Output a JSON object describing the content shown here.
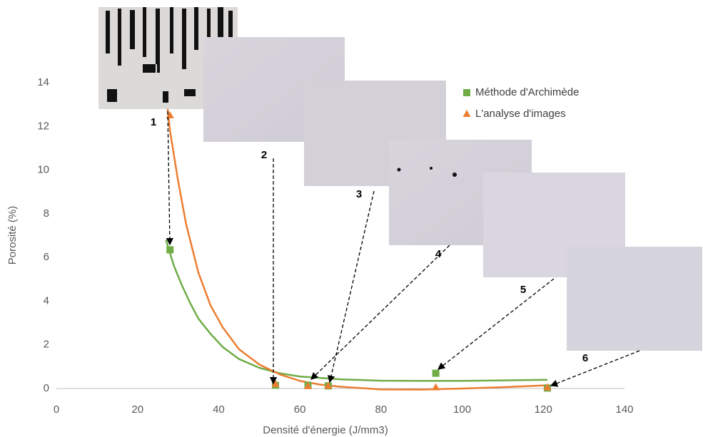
{
  "chart_data": {
    "type": "scatter",
    "xlabel": "Densité d'énergie (J/mm3)",
    "ylabel": "Porosité (%)",
    "xlim": [
      0,
      140
    ],
    "ylim": [
      0,
      14
    ],
    "xticks": [
      0,
      20,
      40,
      60,
      80,
      100,
      120,
      140
    ],
    "yticks": [
      0,
      2,
      4,
      6,
      8,
      10,
      12,
      14
    ],
    "legend": "top-right",
    "series": [
      {
        "name": "Méthode d'Archimède",
        "color": "#70ad47",
        "marker": "square",
        "x": [
          28,
          54,
          62,
          67,
          93.5,
          121
        ],
        "values": [
          6.35,
          0.15,
          0.15,
          0.12,
          0.7,
          0.02
        ],
        "trend_x": [
          27,
          29,
          31,
          33,
          35,
          38,
          41,
          45,
          50,
          55,
          60,
          70,
          80,
          90,
          100,
          110,
          121
        ],
        "trend_y": [
          6.8,
          5.6,
          4.7,
          3.9,
          3.2,
          2.5,
          1.9,
          1.35,
          0.95,
          0.7,
          0.55,
          0.42,
          0.36,
          0.35,
          0.35,
          0.37,
          0.4
        ]
      },
      {
        "name": "L'analyse d'images",
        "color": "#ed7d31",
        "marker": "triangle",
        "x": [
          28,
          54,
          62,
          67,
          93.5,
          121
        ],
        "values": [
          12.5,
          0.2,
          0.1,
          0.12,
          0.05,
          0.05
        ],
        "trend_x": [
          27,
          28,
          30,
          32,
          35,
          38,
          41,
          45,
          50,
          55,
          60,
          65,
          70,
          80,
          90,
          100,
          110,
          121
        ],
        "trend_y": [
          13.5,
          11.8,
          9.5,
          7.5,
          5.3,
          3.8,
          2.8,
          1.8,
          1.1,
          0.65,
          0.35,
          0.18,
          0.08,
          -0.04,
          -0.05,
          0.0,
          0.06,
          0.15
        ]
      }
    ],
    "insets": [
      {
        "label": "1"
      },
      {
        "label": "2"
      },
      {
        "label": "3"
      },
      {
        "label": "4"
      },
      {
        "label": "5"
      },
      {
        "label": "6"
      }
    ]
  }
}
